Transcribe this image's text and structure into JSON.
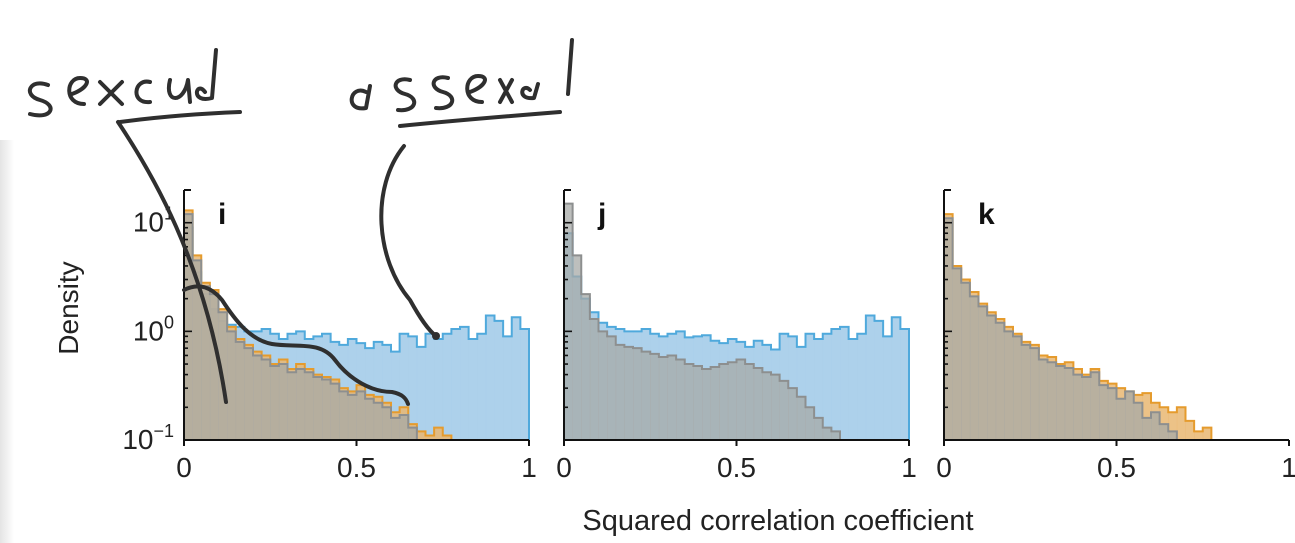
{
  "colors": {
    "blue_fill": "#a9cfea",
    "blue_line": "#4fa9dc",
    "orange_fill": "#e9b772",
    "orange_line": "#e59b2d",
    "gray_fill": "#a7aaa7",
    "gray_line": "#8d8f8f",
    "ink": "#2f2f2f"
  },
  "annotations": {
    "left": "sexual",
    "right": "asexual"
  },
  "chart_data": [
    {
      "type": "histogram",
      "panel_label": "i",
      "ylabel": "Density",
      "yscale": "log",
      "ylim": [
        0.1,
        20
      ],
      "xlim": [
        0,
        1
      ],
      "x_ticks": [
        "0",
        "0.5",
        "1"
      ],
      "y_ticks": [
        {
          "base": "10",
          "exp": "1",
          "value": 10
        },
        {
          "base": "10",
          "exp": "0",
          "value": 1
        },
        {
          "base": "10",
          "exp": "−1",
          "value": 0.1
        }
      ],
      "bin_width": 0.025,
      "series": [
        {
          "color": "blue",
          "values": [
            9.0,
            3.5,
            2.2,
            1.6,
            1.25,
            1.15,
            1.1,
            1.0,
            1.0,
            1.05,
            0.95,
            0.85,
            0.95,
            1.0,
            0.85,
            0.9,
            0.95,
            0.8,
            0.75,
            0.85,
            0.78,
            0.7,
            0.8,
            0.75,
            0.65,
            0.95,
            0.9,
            0.72,
            0.95,
            0.85,
            0.95,
            1.05,
            1.1,
            0.85,
            0.95,
            1.4,
            1.25,
            0.9,
            1.35,
            1.05
          ]
        },
        {
          "color": "orange",
          "values": [
            13.0,
            5.0,
            2.8,
            2.4,
            1.6,
            1.1,
            0.85,
            0.75,
            0.65,
            0.6,
            0.5,
            0.55,
            0.45,
            0.5,
            0.45,
            0.4,
            0.38,
            0.36,
            0.3,
            0.28,
            0.32,
            0.26,
            0.25,
            0.22,
            0.18,
            0.2,
            0.14,
            0.12,
            0.11,
            0.13,
            0.11
          ]
        },
        {
          "color": "gray",
          "values": [
            12.0,
            4.5,
            2.6,
            2.2,
            1.5,
            1.0,
            0.8,
            0.7,
            0.6,
            0.55,
            0.48,
            0.5,
            0.42,
            0.45,
            0.42,
            0.38,
            0.36,
            0.33,
            0.28,
            0.26,
            0.28,
            0.24,
            0.22,
            0.2,
            0.16,
            0.17,
            0.13
          ]
        }
      ]
    },
    {
      "type": "histogram",
      "panel_label": "j",
      "yscale": "log",
      "ylim": [
        0.1,
        20
      ],
      "xlim": [
        0,
        1
      ],
      "x_ticks": [
        "0",
        "0.5",
        "1"
      ],
      "bin_width": 0.025,
      "series": [
        {
          "color": "blue",
          "values": [
            8.0,
            3.2,
            2.0,
            1.5,
            1.2,
            1.1,
            1.05,
            1.0,
            1.0,
            1.05,
            0.95,
            0.9,
            0.95,
            1.0,
            0.88,
            0.9,
            0.92,
            0.82,
            0.78,
            0.85,
            0.8,
            0.72,
            0.82,
            0.75,
            0.68,
            0.95,
            0.9,
            0.72,
            0.95,
            0.85,
            0.95,
            1.05,
            1.1,
            0.85,
            0.95,
            1.4,
            1.25,
            0.9,
            1.35,
            1.05
          ]
        },
        {
          "color": "gray",
          "values": [
            15.0,
            5.0,
            2.2,
            1.3,
            1.0,
            0.9,
            0.75,
            0.72,
            0.7,
            0.65,
            0.62,
            0.58,
            0.6,
            0.55,
            0.5,
            0.48,
            0.45,
            0.47,
            0.5,
            0.52,
            0.55,
            0.5,
            0.46,
            0.42,
            0.4,
            0.35,
            0.3,
            0.25,
            0.2,
            0.16,
            0.13,
            0.12
          ]
        }
      ]
    },
    {
      "type": "histogram",
      "panel_label": "k",
      "yscale": "log",
      "ylim": [
        0.1,
        20
      ],
      "xlim": [
        0,
        1
      ],
      "x_ticks": [
        "0",
        "0.5",
        "1"
      ],
      "bin_width": 0.025,
      "series": [
        {
          "color": "orange",
          "values": [
            12.0,
            4.0,
            3.0,
            2.3,
            1.8,
            1.5,
            1.3,
            1.1,
            0.95,
            0.8,
            0.75,
            0.6,
            0.58,
            0.5,
            0.52,
            0.45,
            0.4,
            0.45,
            0.35,
            0.33,
            0.3,
            0.28,
            0.26,
            0.27,
            0.22,
            0.2,
            0.18,
            0.2,
            0.15,
            0.12,
            0.13
          ]
        },
        {
          "color": "gray",
          "values": [
            11.0,
            3.8,
            2.8,
            2.1,
            1.7,
            1.4,
            1.2,
            1.0,
            0.9,
            0.75,
            0.7,
            0.55,
            0.52,
            0.48,
            0.46,
            0.4,
            0.38,
            0.42,
            0.32,
            0.3,
            0.24,
            0.28,
            0.22,
            0.16,
            0.18,
            0.14,
            0.12
          ]
        }
      ]
    }
  ],
  "shared_xlabel": "Squared correlation coefficient"
}
